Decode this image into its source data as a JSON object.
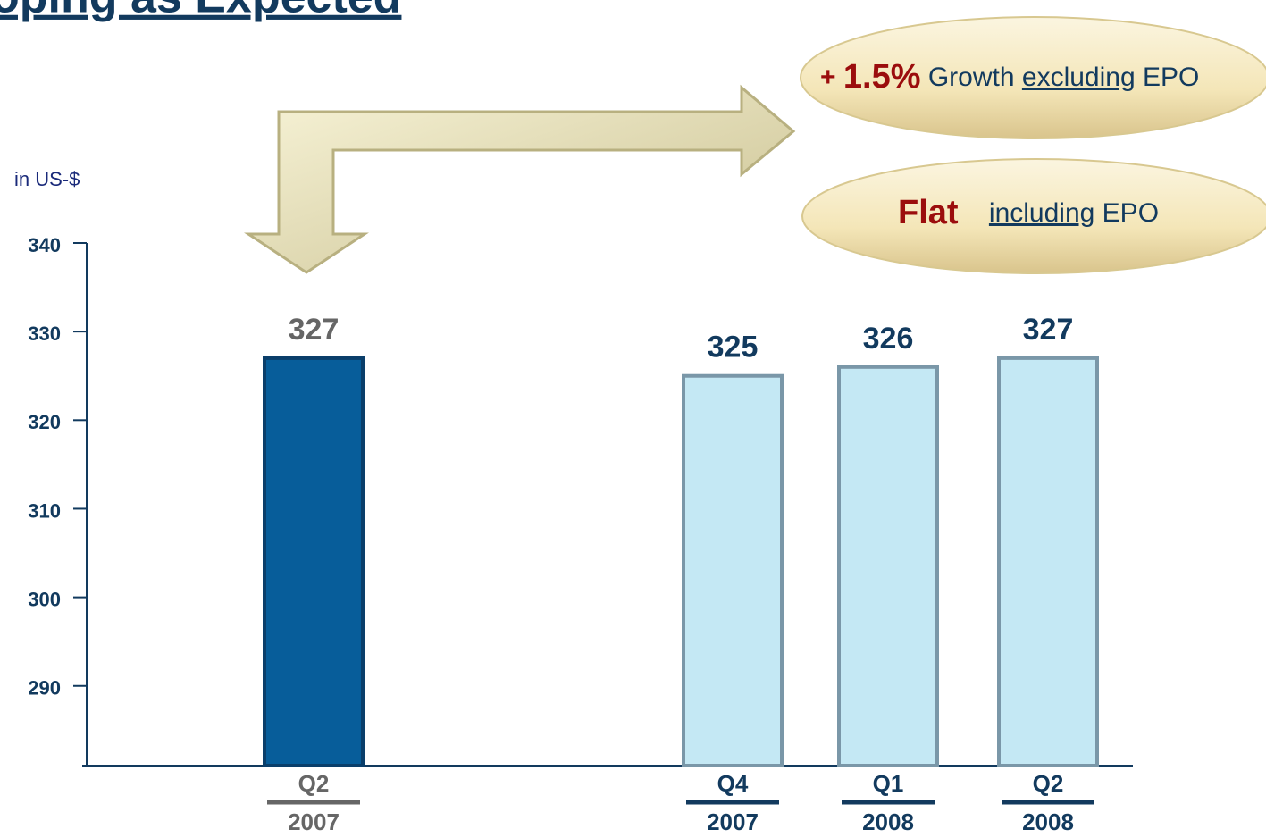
{
  "chart_data": {
    "type": "bar",
    "title": "oping as Expected",
    "y_label": "in US-$",
    "categories": [
      "Q2",
      "Q4",
      "Q1",
      "Q2"
    ],
    "years": [
      "2007",
      "2007",
      "2008",
      "2008"
    ],
    "values": [
      327,
      325,
      326,
      327
    ],
    "colors": [
      "#075d9a",
      "#c4e8f4",
      "#c4e8f4",
      "#c4e8f4"
    ],
    "label_colors": [
      "#666666",
      "#123a5e",
      "#123a5e",
      "#123a5e"
    ],
    "ylim": [
      281,
      340
    ],
    "yticks": [
      290,
      300,
      310,
      320,
      330,
      340
    ],
    "annotations": {
      "growth": {
        "sign": "+",
        "value": "1.5%",
        "word": "Growth",
        "qualifier": "excluding",
        "item": "EPO"
      },
      "flat": {
        "word": "Flat",
        "qualifier": "including",
        "item": "EPO"
      }
    }
  }
}
